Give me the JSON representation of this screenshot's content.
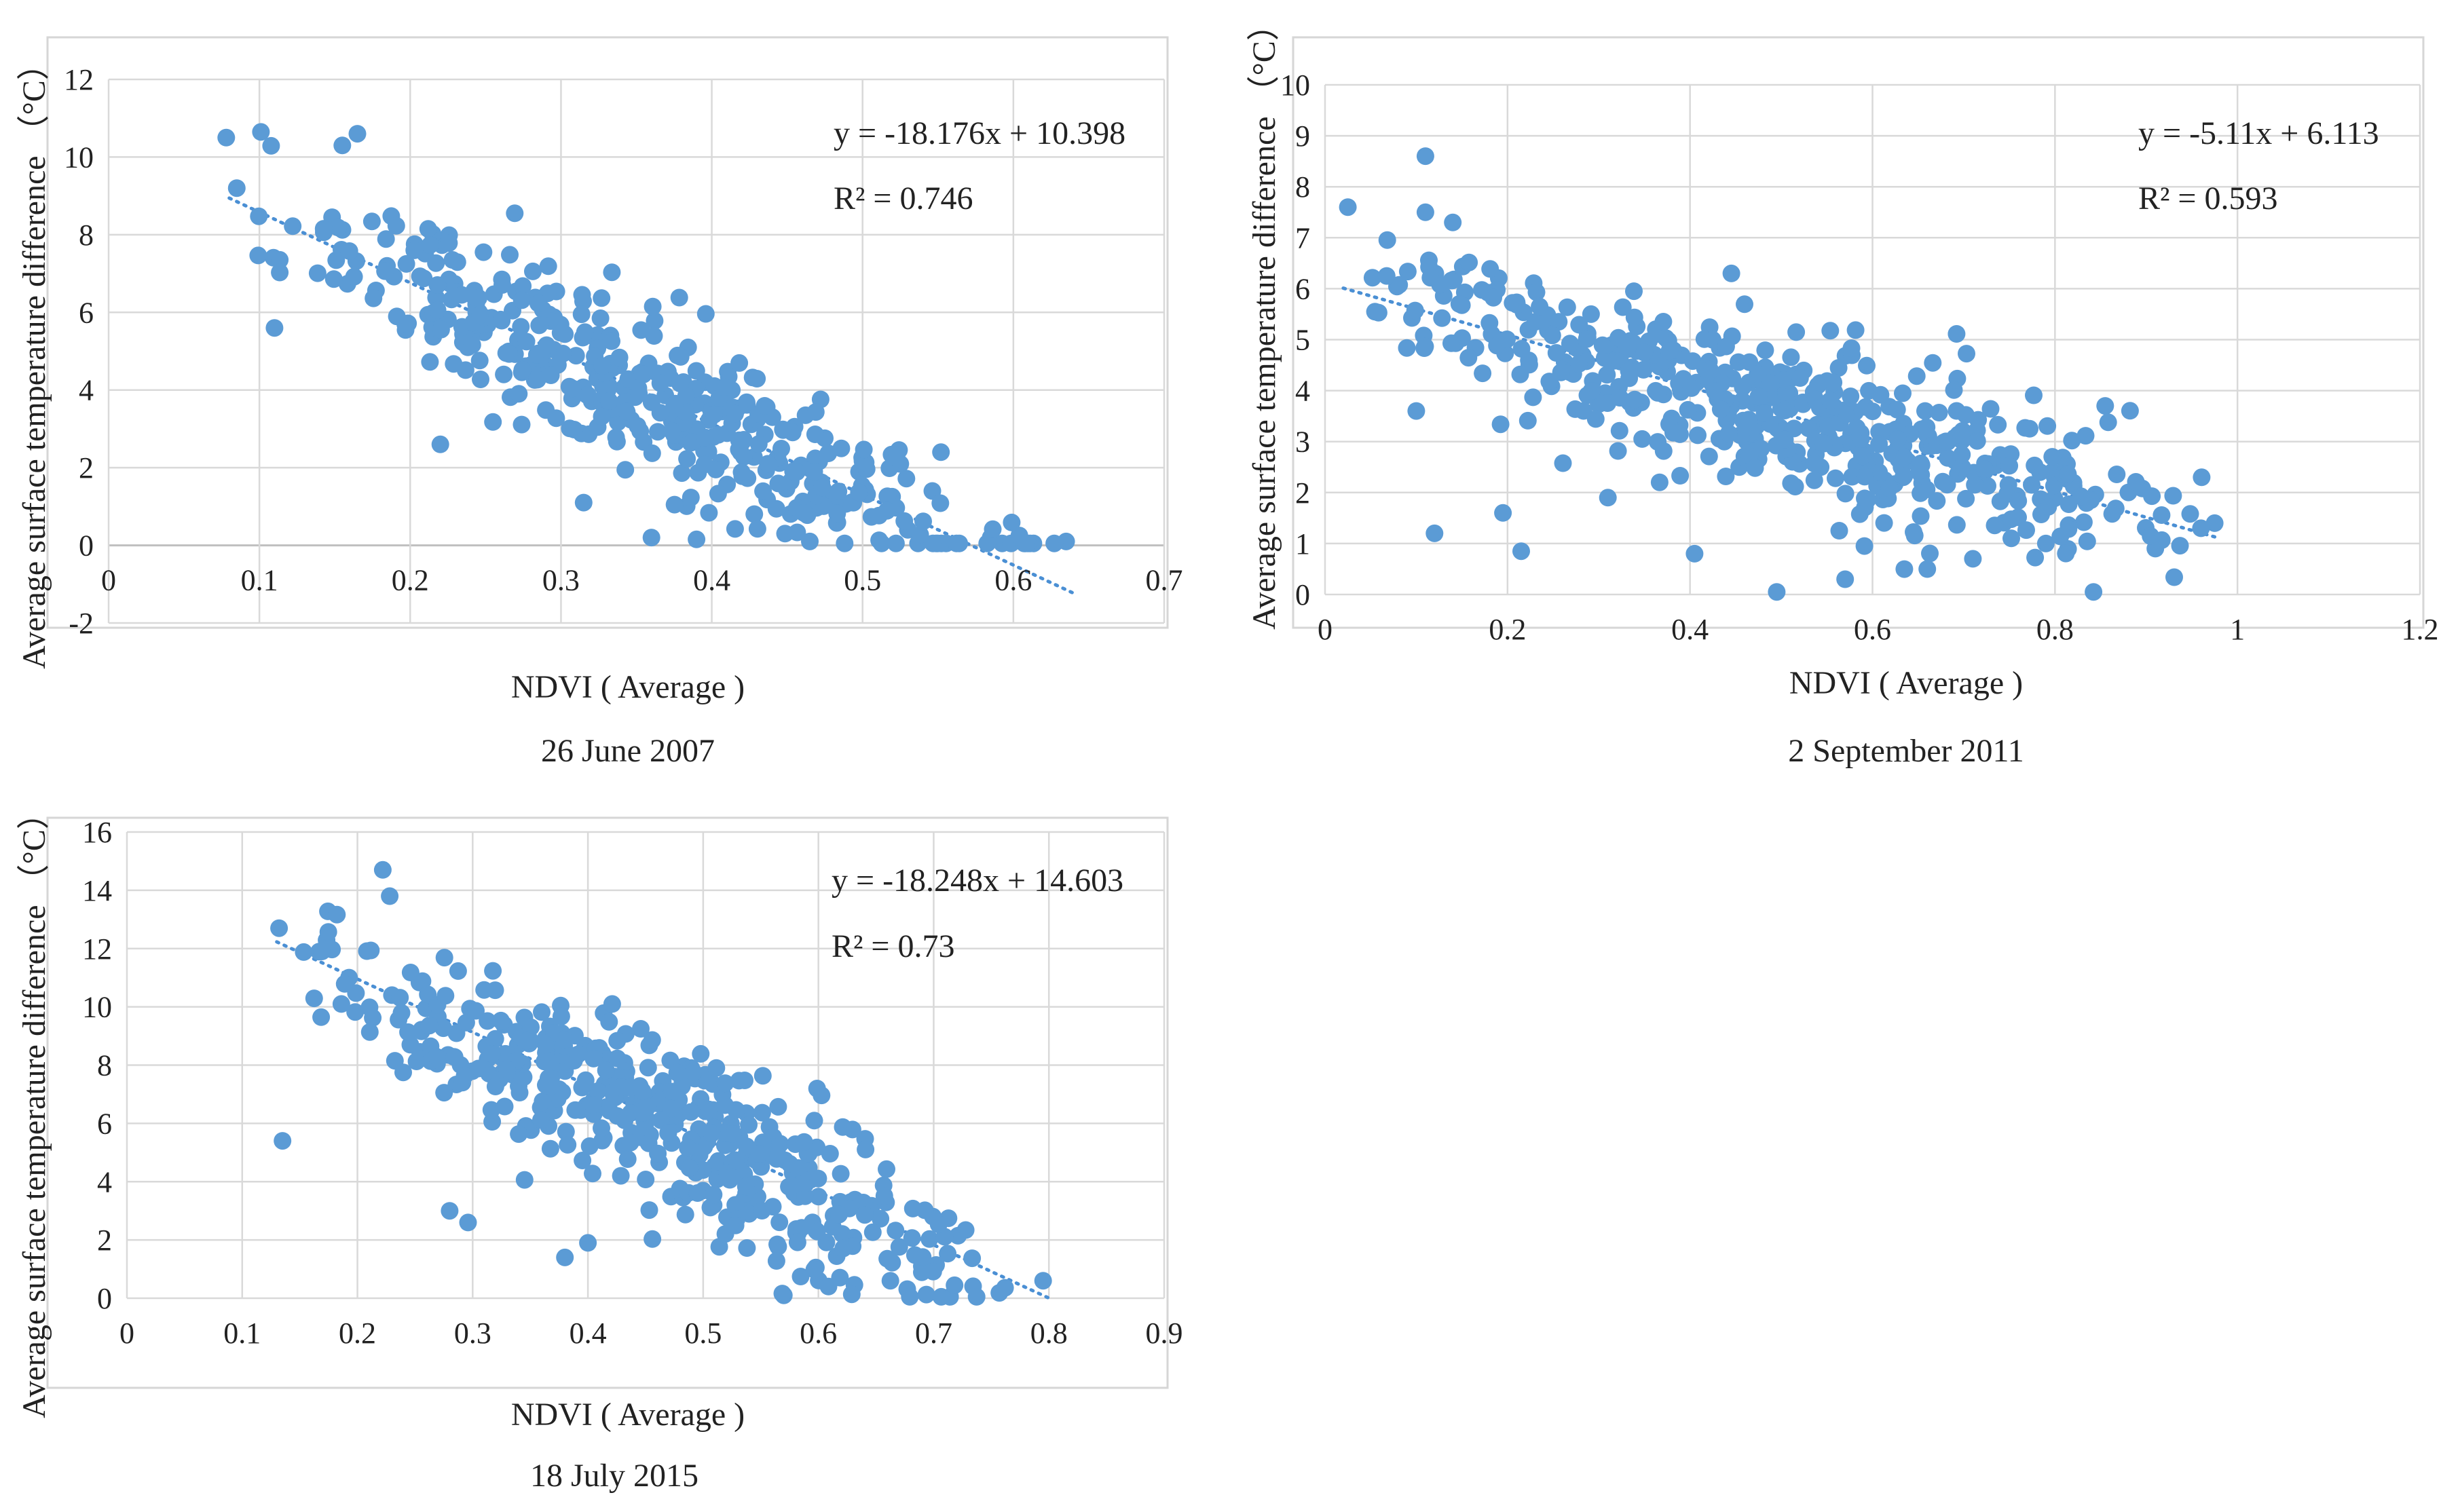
{
  "chart_data": [
    {
      "type": "scatter",
      "caption": "26 June 2007",
      "xlabel": "NDVI ( Average )",
      "ylabel": "Average surface temperature difference （°C）",
      "xlim": [
        0,
        0.7
      ],
      "ylim": [
        -2,
        12
      ],
      "x_ticks": [
        0,
        0.1,
        0.2,
        0.3,
        0.4,
        0.5,
        0.6,
        0.7
      ],
      "y_ticks": [
        -2,
        0,
        2,
        4,
        6,
        8,
        10,
        12
      ],
      "x_tick_labels": [
        "0",
        "0.1",
        "0.2",
        "0.3",
        "0.4",
        "0.5",
        "0.6",
        "0.7"
      ],
      "y_tick_labels": [
        "-2",
        "0",
        "2",
        "4",
        "6",
        "8",
        "10",
        "12"
      ],
      "equation": "y = -18.176x + 10.398",
      "r2_label": "R² = 0.746",
      "trendline": {
        "slope": -18.176,
        "intercept": 10.398,
        "x_range": [
          0.08,
          0.64
        ]
      },
      "grid": true,
      "marker_color": "#5b9bd5",
      "point_count": 450,
      "scatter_sd": 1.05,
      "point_x_range": [
        0.08,
        0.63
      ],
      "seed": 11,
      "points": [
        [
          0.078,
          10.5
        ],
        [
          0.085,
          9.2
        ],
        [
          0.11,
          5.6
        ],
        [
          0.155,
          10.3
        ],
        [
          0.165,
          10.6
        ],
        [
          0.22,
          2.6
        ],
        [
          0.315,
          1.1
        ],
        [
          0.36,
          0.2
        ],
        [
          0.465,
          0.1
        ],
        [
          0.53,
          0.4
        ],
        [
          0.552,
          2.4
        ],
        [
          0.585,
          0.2
        ],
        [
          0.635,
          0.1
        ]
      ]
    },
    {
      "type": "scatter",
      "caption": "2 September 2011",
      "xlabel": "NDVI ( Average )",
      "ylabel": "Average surface temperature difference （°C）",
      "xlim": [
        0,
        1.2
      ],
      "ylim": [
        0,
        10
      ],
      "x_ticks": [
        0,
        0.2,
        0.4,
        0.6,
        0.8,
        1,
        1.2
      ],
      "y_ticks": [
        0,
        1,
        2,
        3,
        4,
        5,
        6,
        7,
        8,
        9,
        10
      ],
      "x_tick_labels": [
        "0",
        "0.2",
        "0.4",
        "0.6",
        "0.8",
        "1",
        "1.2"
      ],
      "y_tick_labels": [
        "0",
        "1",
        "2",
        "3",
        "4",
        "5",
        "6",
        "7",
        "8",
        "9",
        "10"
      ],
      "equation": "y = -5.11x + 6.113",
      "r2_label": "R² = 0.593",
      "trendline": {
        "slope": -5.11,
        "intercept": 6.113,
        "x_range": [
          0.02,
          0.98
        ]
      },
      "grid": true,
      "marker_color": "#5b9bd5",
      "point_count": 520,
      "scatter_sd": 0.8,
      "point_x_range": [
        0.01,
        0.98
      ],
      "seed": 23,
      "points": [
        [
          0.11,
          8.6
        ],
        [
          0.025,
          7.6
        ],
        [
          0.11,
          7.5
        ],
        [
          0.14,
          7.3
        ],
        [
          0.1,
          3.6
        ],
        [
          0.12,
          1.2
        ],
        [
          0.215,
          0.85
        ],
        [
          0.195,
          1.6
        ],
        [
          0.31,
          1.9
        ],
        [
          0.405,
          0.8
        ],
        [
          0.495,
          0.05
        ],
        [
          0.57,
          0.3
        ],
        [
          0.66,
          0.5
        ],
        [
          0.71,
          0.7
        ],
        [
          0.79,
          1.0
        ],
        [
          0.855,
          3.7
        ],
        [
          0.91,
          0.9
        ],
        [
          0.975,
          1.4
        ],
        [
          0.96,
          1.3
        ]
      ]
    },
    {
      "type": "scatter",
      "caption": "18 July 2015",
      "xlabel": "NDVI ( Average )",
      "ylabel": "Average surface temperature difference （°C）",
      "xlim": [
        0,
        0.9
      ],
      "ylim": [
        0,
        16
      ],
      "x_ticks": [
        0,
        0.1,
        0.2,
        0.3,
        0.4,
        0.5,
        0.6,
        0.7,
        0.8,
        0.9
      ],
      "y_ticks": [
        0,
        2,
        4,
        6,
        8,
        10,
        12,
        14,
        16
      ],
      "x_tick_labels": [
        "0",
        "0.1",
        "0.2",
        "0.3",
        "0.4",
        "0.5",
        "0.6",
        "0.7",
        "0.8",
        "0.9"
      ],
      "y_tick_labels": [
        "0",
        "2",
        "4",
        "6",
        "8",
        "10",
        "12",
        "14",
        "16"
      ],
      "equation": "y = -18.248x + 14.603",
      "r2_label": "R² = 0.73",
      "trendline": {
        "slope": -18.248,
        "intercept": 14.603,
        "x_range": [
          0.13,
          0.8
        ]
      },
      "grid": true,
      "marker_color": "#5b9bd5",
      "point_count": 470,
      "scatter_sd": 1.45,
      "point_x_range": [
        0.13,
        0.8
      ],
      "seed": 37,
      "points": [
        [
          0.132,
          12.7
        ],
        [
          0.135,
          5.4
        ],
        [
          0.222,
          14.7
        ],
        [
          0.228,
          13.8
        ],
        [
          0.28,
          3.0
        ],
        [
          0.296,
          2.6
        ],
        [
          0.38,
          1.4
        ],
        [
          0.4,
          1.9
        ],
        [
          0.57,
          0.1
        ],
        [
          0.795,
          0.6
        ]
      ]
    }
  ]
}
